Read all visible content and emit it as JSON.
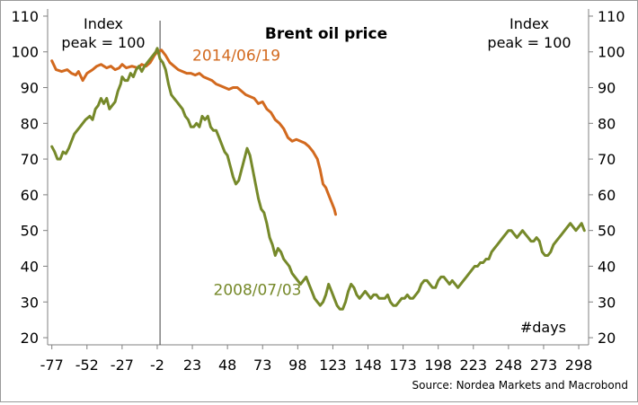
{
  "chart_data": {
    "type": "line",
    "title": "Brent oil price",
    "ylabel_left": "Index\npeak = 100",
    "ylabel_right": "Index\npeak = 100",
    "xlabel": "#days",
    "source": "Source: Nordea Markets and Macrobond",
    "xlim": [
      -80,
      305
    ],
    "ylim": [
      18,
      112
    ],
    "xticks": [
      -77,
      -52,
      -27,
      -2,
      23,
      48,
      73,
      98,
      123,
      148,
      173,
      198,
      223,
      248,
      273,
      298
    ],
    "xtick_labels": [
      "-77",
      "-52",
      "-27",
      "-2",
      "23",
      "48",
      "73",
      "98",
      "123",
      "148",
      "173",
      "198",
      "223",
      "248",
      "273",
      "298"
    ],
    "yticks": [
      20,
      30,
      40,
      50,
      60,
      70,
      80,
      90,
      100,
      110
    ],
    "ytick_labels": [
      "20",
      "30",
      "40",
      "50",
      "60",
      "70",
      "80",
      "90",
      "100",
      "110"
    ],
    "peak_marker_x": 0,
    "series": [
      {
        "name": "2014/06/19",
        "color": "#d2691e",
        "points": [
          [
            -77,
            97.5
          ],
          [
            -74,
            95
          ],
          [
            -70,
            94.5
          ],
          [
            -66,
            95
          ],
          [
            -63,
            94
          ],
          [
            -60,
            93.5
          ],
          [
            -58,
            94.5
          ],
          [
            -55,
            92
          ],
          [
            -52,
            94
          ],
          [
            -48,
            95
          ],
          [
            -45,
            96
          ],
          [
            -42,
            96.5
          ],
          [
            -38,
            95.5
          ],
          [
            -35,
            96
          ],
          [
            -32,
            95
          ],
          [
            -29,
            95.5
          ],
          [
            -27,
            96.5
          ],
          [
            -24,
            95.5
          ],
          [
            -20,
            96
          ],
          [
            -16,
            95.5
          ],
          [
            -13,
            96.5
          ],
          [
            -10,
            96
          ],
          [
            -7,
            97
          ],
          [
            -4,
            99
          ],
          [
            -2,
            100
          ],
          [
            1,
            100.5
          ],
          [
            4,
            99
          ],
          [
            7,
            97
          ],
          [
            10,
            96
          ],
          [
            13,
            95
          ],
          [
            16,
            94.5
          ],
          [
            19,
            94
          ],
          [
            22,
            94
          ],
          [
            25,
            93.5
          ],
          [
            28,
            94
          ],
          [
            31,
            93
          ],
          [
            34,
            92.5
          ],
          [
            37,
            92
          ],
          [
            40,
            91
          ],
          [
            43,
            90.5
          ],
          [
            46,
            90
          ],
          [
            49,
            89.5
          ],
          [
            52,
            90
          ],
          [
            55,
            90
          ],
          [
            58,
            89
          ],
          [
            61,
            88
          ],
          [
            64,
            87.5
          ],
          [
            67,
            87
          ],
          [
            70,
            85.5
          ],
          [
            73,
            86
          ],
          [
            76,
            84
          ],
          [
            79,
            83
          ],
          [
            82,
            81
          ],
          [
            85,
            80
          ],
          [
            88,
            78.5
          ],
          [
            91,
            76
          ],
          [
            94,
            75
          ],
          [
            97,
            75.5
          ],
          [
            100,
            75
          ],
          [
            103,
            74.5
          ],
          [
            106,
            73.5
          ],
          [
            109,
            72
          ],
          [
            112,
            70
          ],
          [
            114,
            67
          ],
          [
            116,
            63
          ],
          [
            118,
            62
          ],
          [
            120,
            60
          ],
          [
            122,
            58
          ],
          [
            124,
            56
          ],
          [
            125,
            54.5
          ]
        ]
      },
      {
        "name": "2008/07/03",
        "color": "#76892a",
        "points": [
          [
            -77,
            73.5
          ],
          [
            -75,
            72
          ],
          [
            -73,
            70
          ],
          [
            -71,
            70
          ],
          [
            -69,
            72
          ],
          [
            -67,
            71.5
          ],
          [
            -65,
            73
          ],
          [
            -63,
            75
          ],
          [
            -61,
            77
          ],
          [
            -59,
            78
          ],
          [
            -57,
            79
          ],
          [
            -55,
            80
          ],
          [
            -53,
            81
          ],
          [
            -50,
            82
          ],
          [
            -48,
            81
          ],
          [
            -46,
            84
          ],
          [
            -44,
            85
          ],
          [
            -42,
            87
          ],
          [
            -40,
            85.5
          ],
          [
            -38,
            87
          ],
          [
            -36,
            84
          ],
          [
            -34,
            85
          ],
          [
            -32,
            86
          ],
          [
            -30,
            89
          ],
          [
            -28,
            91
          ],
          [
            -27,
            93
          ],
          [
            -25,
            92
          ],
          [
            -23,
            92
          ],
          [
            -21,
            94
          ],
          [
            -19,
            93
          ],
          [
            -17,
            95
          ],
          [
            -15,
            96
          ],
          [
            -13,
            94.5
          ],
          [
            -11,
            96
          ],
          [
            -9,
            97
          ],
          [
            -7,
            98
          ],
          [
            -5,
            99
          ],
          [
            -3,
            100
          ],
          [
            -2,
            101
          ],
          [
            0,
            98
          ],
          [
            2,
            97
          ],
          [
            4,
            95
          ],
          [
            6,
            91
          ],
          [
            8,
            88
          ],
          [
            10,
            87
          ],
          [
            12,
            86
          ],
          [
            14,
            85
          ],
          [
            16,
            84
          ],
          [
            18,
            82
          ],
          [
            20,
            81
          ],
          [
            22,
            79
          ],
          [
            24,
            79
          ],
          [
            26,
            80
          ],
          [
            28,
            79
          ],
          [
            30,
            82
          ],
          [
            32,
            81
          ],
          [
            34,
            82
          ],
          [
            36,
            79
          ],
          [
            38,
            78
          ],
          [
            40,
            78
          ],
          [
            42,
            76
          ],
          [
            44,
            74
          ],
          [
            46,
            72
          ],
          [
            48,
            71
          ],
          [
            50,
            68
          ],
          [
            52,
            65
          ],
          [
            54,
            63
          ],
          [
            56,
            64
          ],
          [
            58,
            67
          ],
          [
            60,
            70
          ],
          [
            62,
            73
          ],
          [
            64,
            71
          ],
          [
            66,
            67
          ],
          [
            68,
            63
          ],
          [
            70,
            59
          ],
          [
            72,
            56
          ],
          [
            74,
            55
          ],
          [
            76,
            52
          ],
          [
            78,
            48
          ],
          [
            80,
            46
          ],
          [
            82,
            43
          ],
          [
            84,
            45
          ],
          [
            86,
            44
          ],
          [
            88,
            42
          ],
          [
            90,
            41
          ],
          [
            92,
            40
          ],
          [
            94,
            38
          ],
          [
            96,
            37
          ],
          [
            98,
            36
          ],
          [
            100,
            35
          ],
          [
            102,
            36
          ],
          [
            104,
            37
          ],
          [
            106,
            35
          ],
          [
            108,
            33
          ],
          [
            110,
            31
          ],
          [
            112,
            30
          ],
          [
            114,
            29
          ],
          [
            116,
            30
          ],
          [
            118,
            32
          ],
          [
            120,
            35
          ],
          [
            122,
            33
          ],
          [
            124,
            31
          ],
          [
            126,
            29
          ],
          [
            128,
            28
          ],
          [
            130,
            28
          ],
          [
            132,
            30
          ],
          [
            134,
            33
          ],
          [
            136,
            35
          ],
          [
            138,
            34
          ],
          [
            140,
            32
          ],
          [
            142,
            31
          ],
          [
            144,
            32
          ],
          [
            146,
            33
          ],
          [
            148,
            32
          ],
          [
            150,
            31
          ],
          [
            152,
            32
          ],
          [
            154,
            32
          ],
          [
            156,
            31
          ],
          [
            158,
            31
          ],
          [
            160,
            31
          ],
          [
            162,
            32
          ],
          [
            164,
            30
          ],
          [
            166,
            29
          ],
          [
            168,
            29
          ],
          [
            170,
            30
          ],
          [
            172,
            31
          ],
          [
            174,
            31
          ],
          [
            176,
            32
          ],
          [
            178,
            31
          ],
          [
            180,
            31
          ],
          [
            182,
            32
          ],
          [
            184,
            33
          ],
          [
            186,
            35
          ],
          [
            188,
            36
          ],
          [
            190,
            36
          ],
          [
            192,
            35
          ],
          [
            194,
            34
          ],
          [
            196,
            34
          ],
          [
            198,
            36
          ],
          [
            200,
            37
          ],
          [
            202,
            37
          ],
          [
            204,
            36
          ],
          [
            206,
            35
          ],
          [
            208,
            36
          ],
          [
            210,
            35
          ],
          [
            212,
            34
          ],
          [
            214,
            35
          ],
          [
            216,
            36
          ],
          [
            218,
            37
          ],
          [
            220,
            38
          ],
          [
            222,
            39
          ],
          [
            224,
            40
          ],
          [
            226,
            40
          ],
          [
            228,
            41
          ],
          [
            230,
            41
          ],
          [
            232,
            42
          ],
          [
            234,
            42
          ],
          [
            236,
            44
          ],
          [
            238,
            45
          ],
          [
            240,
            46
          ],
          [
            242,
            47
          ],
          [
            244,
            48
          ],
          [
            246,
            49
          ],
          [
            248,
            50
          ],
          [
            250,
            50
          ],
          [
            252,
            49
          ],
          [
            254,
            48
          ],
          [
            256,
            49
          ],
          [
            258,
            50
          ],
          [
            260,
            49
          ],
          [
            262,
            48
          ],
          [
            264,
            47
          ],
          [
            266,
            47
          ],
          [
            268,
            48
          ],
          [
            270,
            47
          ],
          [
            272,
            44
          ],
          [
            274,
            43
          ],
          [
            276,
            43
          ],
          [
            278,
            44
          ],
          [
            280,
            46
          ],
          [
            282,
            47
          ],
          [
            284,
            48
          ],
          [
            286,
            49
          ],
          [
            288,
            50
          ],
          [
            290,
            51
          ],
          [
            292,
            52
          ],
          [
            294,
            51
          ],
          [
            296,
            50
          ],
          [
            298,
            51
          ],
          [
            300,
            52
          ],
          [
            302,
            50
          ]
        ]
      }
    ],
    "series_labels": [
      {
        "text": "2014/06/19",
        "series": 0,
        "at": [
          23,
          97.5
        ]
      },
      {
        "text": "2008/07/03",
        "series": 1,
        "at": [
          38,
          32
        ]
      }
    ]
  }
}
